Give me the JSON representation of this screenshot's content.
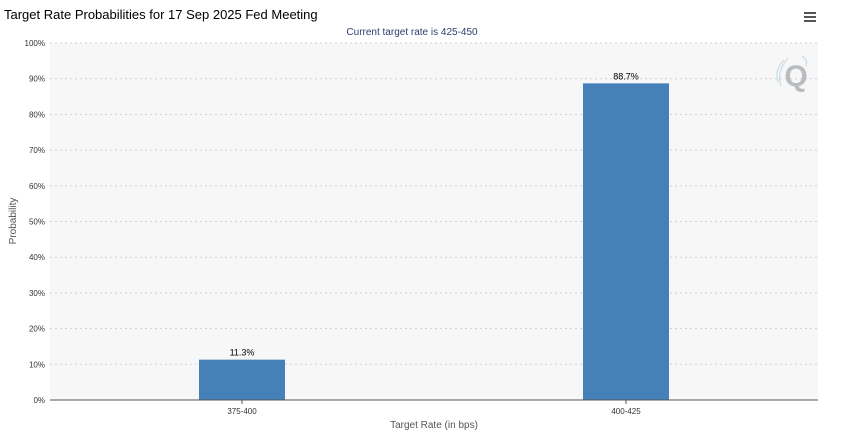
{
  "page": {
    "title": "Target Rate Probabilities for 17 Sep 2025 Fed Meeting"
  },
  "colors": {
    "bar": "#4580b9",
    "plot_background": "#f7f7f7",
    "grid": "#d0d0d0",
    "subtitle": "#2a3f6a"
  },
  "icons": {
    "menu": "hamburger-menu-icon",
    "logo": "q-logo-icon"
  },
  "chart_data": {
    "type": "bar",
    "title": "Target Rate Probabilities for 17 Sep 2025 Fed Meeting",
    "subtitle": "Current target rate is 425-450",
    "xlabel": "Target Rate (in bps)",
    "ylabel": "Probability",
    "categories": [
      "375-400",
      "400-425"
    ],
    "values": [
      11.3,
      88.7
    ],
    "data_labels": [
      "11.3%",
      "88.7%"
    ],
    "ylim": [
      0,
      100
    ],
    "yticks": [
      "0%",
      "10%",
      "20%",
      "30%",
      "40%",
      "50%",
      "60%",
      "70%",
      "80%",
      "90%",
      "100%"
    ],
    "grid": true,
    "legend": "none"
  }
}
